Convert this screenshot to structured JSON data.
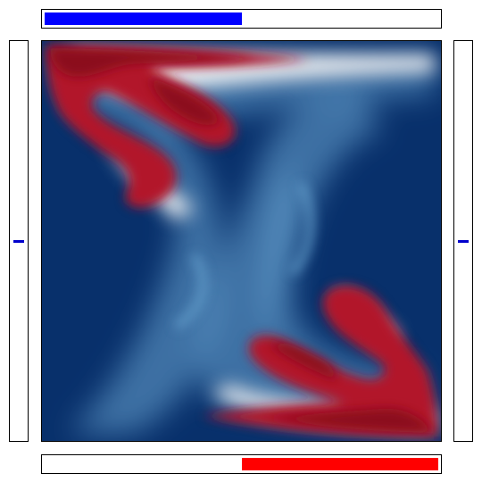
{
  "top_bar": {
    "level": 0.5,
    "color": "#0000ff"
  },
  "bottom_bar": {
    "level": 0.5,
    "color": "#ff0000"
  },
  "left_panel": {
    "marker_level": 0.5,
    "color": "#0000cc"
  },
  "right_panel": {
    "marker_level": 0.5,
    "color": "#0000cc"
  },
  "field": {
    "colormap": "RdBu",
    "background_color": "#08306b",
    "warm_color": "#b2182b",
    "deep_warm_color": "#8b0a1e",
    "light_blue": "#6aa6d4",
    "white": "#f7f7f7"
  }
}
